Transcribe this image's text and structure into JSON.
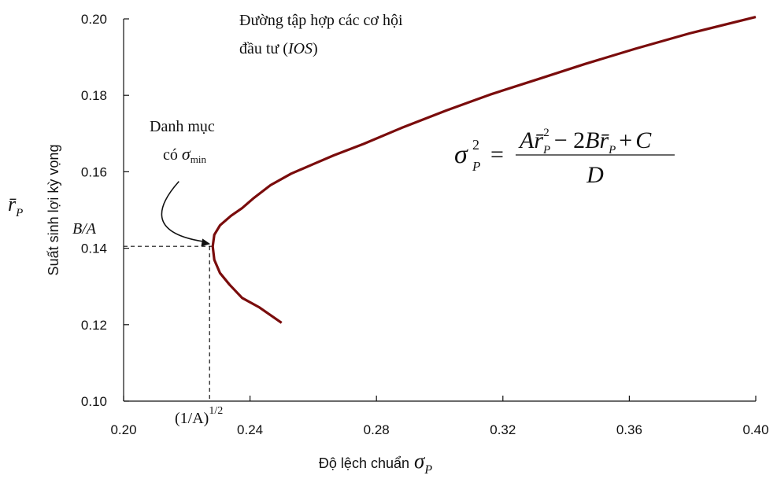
{
  "chart_data": {
    "type": "line",
    "title": "",
    "xlabel": "Độ lệch chuẩn",
    "xlabel_symbol": "σ",
    "xlabel_symbol_sub": "P",
    "ylabel": "Suất sinh lợi kỳ vọng",
    "ylabel_symbol": "r̄",
    "ylabel_symbol_sub": "P",
    "xlim": [
      0.2,
      0.4
    ],
    "ylim": [
      0.1,
      0.2
    ],
    "x_ticks": [
      "0.20",
      "0.24",
      "0.28",
      "0.32",
      "0.36",
      "0.40"
    ],
    "y_ticks": [
      "0.10",
      "0.12",
      "0.14",
      "0.16",
      "0.18",
      "0.20"
    ],
    "grid": false,
    "line_color": "#7a0c0c",
    "series": [
      {
        "x": [
          0.25,
          0.243,
          0.2375,
          0.2335,
          0.2305,
          0.2287,
          0.2282,
          0.2287,
          0.2305,
          0.234,
          0.2375,
          0.241,
          0.2465,
          0.253,
          0.26,
          0.2665,
          0.276,
          0.288,
          0.302,
          0.316,
          0.331,
          0.346,
          0.362,
          0.379,
          0.4
        ],
        "y": [
          0.1205,
          0.1245,
          0.127,
          0.1305,
          0.1335,
          0.137,
          0.1405,
          0.1435,
          0.146,
          0.1485,
          0.1505,
          0.153,
          0.1565,
          0.1595,
          0.162,
          0.1643,
          0.1673,
          0.1715,
          0.176,
          0.1802,
          0.1842,
          0.1882,
          0.1922,
          0.1962,
          0.2005
        ]
      }
    ],
    "annotations": {
      "ios_line1": "Đường tập hợp các cơ hội",
      "ios_line2_prefix": "đầu tư (",
      "ios_line2_italic": "IOS",
      "ios_line2_suffix": ")",
      "minvar_line1": "Danh mục",
      "minvar_prefix": "có",
      "minvar_symbol": "σ",
      "minvar_sub": "min",
      "ba_label": "B/A",
      "inv_a_label": "(1/A)",
      "inv_a_sup": "1/2",
      "min_point": {
        "x": 0.2282,
        "y": 0.1405
      },
      "arrow_tail": {
        "x": 0.2175,
        "y": 0.1575
      },
      "arrow_ctrl": {
        "x": 0.2035,
        "y": 0.1445
      },
      "formula": {
        "lhs_symbol": "σ",
        "lhs_sup": "2",
        "lhs_sub": "P",
        "equals": "=",
        "num_A": "A",
        "num_r": "r̄",
        "num_r_sub": "P",
        "num_r_sup": "2",
        "num_minus": "− 2",
        "num_B": "B",
        "num_r2": "r̄",
        "num_r2_sub": "P",
        "num_plus": "+",
        "num_C": "C",
        "denom": "D"
      }
    }
  }
}
